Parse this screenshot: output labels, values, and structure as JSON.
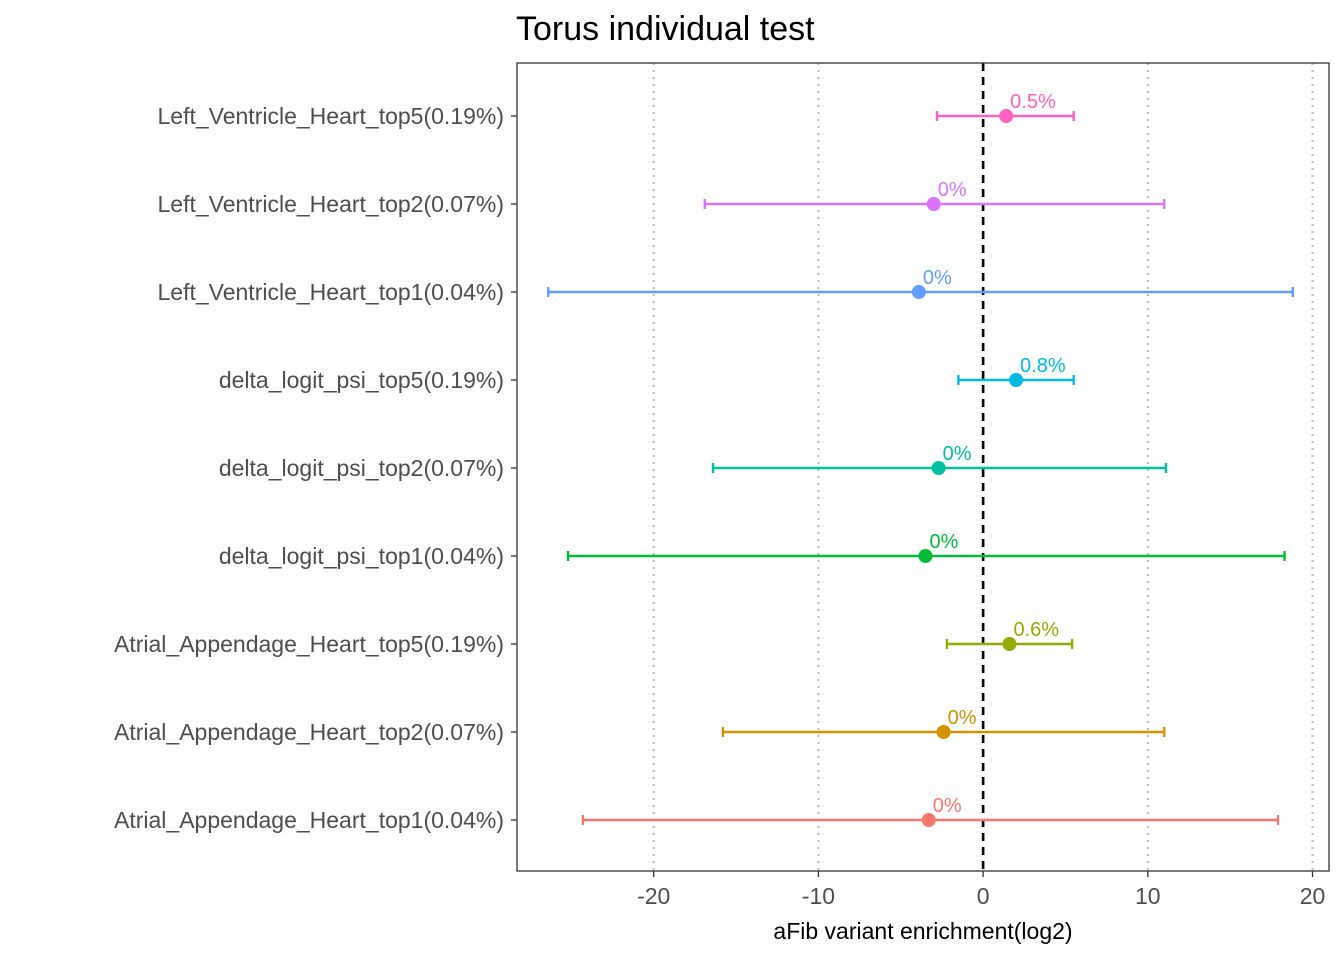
{
  "chart_data": {
    "type": "errorbar",
    "title": "Torus individual test",
    "xlabel": "aFib variant enrichment(log2)",
    "ylabel": "",
    "xlim": [
      -28.3,
      21.0
    ],
    "xticks": [
      -20,
      -10,
      0,
      10,
      20
    ],
    "xtick_labels": [
      "-20",
      "-10",
      "0",
      "10",
      "20"
    ],
    "grid": "vertical dotted",
    "reference_line": 0,
    "legend": "none",
    "rows": [
      {
        "label": "Left_Ventricle_Heart_top5(0.19%)",
        "estimate": 1.4,
        "low": -2.8,
        "high": 5.5,
        "annotation": "0.5%",
        "color": "#FF61C3"
      },
      {
        "label": "Left_Ventricle_Heart_top2(0.07%)",
        "estimate": -3.0,
        "low": -16.9,
        "high": 11.0,
        "annotation": "0%",
        "color": "#DB72FB"
      },
      {
        "label": "Left_Ventricle_Heart_top1(0.04%)",
        "estimate": -3.9,
        "low": -26.4,
        "high": 18.8,
        "annotation": "0%",
        "color": "#619CFF"
      },
      {
        "label": "delta_logit_psi_top5(0.19%)",
        "estimate": 2.0,
        "low": -1.5,
        "high": 5.5,
        "annotation": "0.8%",
        "color": "#00B9E3"
      },
      {
        "label": "delta_logit_psi_top2(0.07%)",
        "estimate": -2.7,
        "low": -16.4,
        "high": 11.1,
        "annotation": "0%",
        "color": "#00C19F"
      },
      {
        "label": "delta_logit_psi_top1(0.04%)",
        "estimate": -3.5,
        "low": -25.2,
        "high": 18.3,
        "annotation": "0%",
        "color": "#00BA38"
      },
      {
        "label": "Atrial_Appendage_Heart_top5(0.19%)",
        "estimate": 1.6,
        "low": -2.2,
        "high": 5.4,
        "annotation": "0.6%",
        "color": "#93AA00"
      },
      {
        "label": "Atrial_Appendage_Heart_top2(0.07%)",
        "estimate": -2.4,
        "low": -15.8,
        "high": 11.0,
        "annotation": "0%",
        "color": "#D39200"
      },
      {
        "label": "Atrial_Appendage_Heart_top1(0.04%)",
        "estimate": -3.3,
        "low": -24.3,
        "high": 17.9,
        "annotation": "0%",
        "color": "#F8766D"
      }
    ]
  }
}
